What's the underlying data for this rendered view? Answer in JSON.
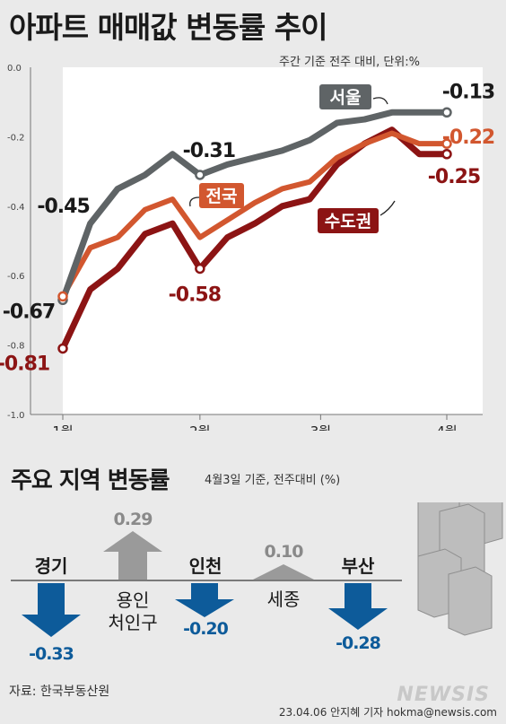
{
  "title": "아파트 매매값 변동률 추이",
  "unit_note": "주간 기준 전주 대비, 단위:%",
  "chart_data": {
    "type": "line",
    "title": "아파트 매매값 변동률 추이",
    "x": [
      0,
      1,
      2,
      3,
      4,
      5,
      6,
      7,
      8,
      9,
      10,
      11,
      12,
      13,
      14
    ],
    "x_ticks": [
      {
        "pos": 0,
        "label": "1월"
      },
      {
        "pos": 5,
        "label": "2월"
      },
      {
        "pos": 9.4,
        "label": "3월"
      },
      {
        "pos": 14,
        "label": "4월"
      }
    ],
    "ylim": [
      -1.0,
      0.0
    ],
    "y_ticks": [
      "0.0",
      "-0.2",
      "-0.4",
      "-0.6",
      "-0.8",
      "-1.0"
    ],
    "grid": false,
    "series": [
      {
        "name": "서울",
        "color": "#5f6466",
        "values": [
          -0.67,
          -0.45,
          -0.35,
          -0.31,
          -0.25,
          -0.31,
          -0.28,
          -0.26,
          -0.24,
          -0.21,
          -0.16,
          -0.15,
          -0.13,
          -0.13,
          -0.13
        ]
      },
      {
        "name": "전국",
        "color": "#d2572f",
        "values": [
          -0.66,
          -0.52,
          -0.49,
          -0.41,
          -0.38,
          -0.49,
          -0.44,
          -0.39,
          -0.35,
          -0.33,
          -0.26,
          -0.22,
          -0.19,
          -0.22,
          -0.22
        ]
      },
      {
        "name": "수도권",
        "color": "#8c1414",
        "values": [
          -0.81,
          -0.64,
          -0.58,
          -0.48,
          -0.45,
          -0.58,
          -0.49,
          -0.45,
          -0.4,
          -0.38,
          -0.28,
          -0.22,
          -0.18,
          -0.25,
          -0.25
        ]
      }
    ],
    "annotations": [
      {
        "text": "-0.45"
      },
      {
        "text": "-0.67"
      },
      {
        "text": "-0.81"
      },
      {
        "text": "-0.31"
      },
      {
        "text": "-0.58"
      },
      {
        "text": "-0.13"
      },
      {
        "text": "-0.22"
      },
      {
        "text": "-0.25"
      }
    ],
    "series_labels": [
      "서울",
      "전국",
      "수도권"
    ]
  },
  "regions": {
    "title": "주요 지역 변동률",
    "note": "4월3일 기준, 전주대비 (%)",
    "items": [
      {
        "name": "경기",
        "value": "-0.33",
        "dir": "down"
      },
      {
        "name": "용인 처인구",
        "name1": "용인",
        "name2": "처인구",
        "value": "0.29",
        "dir": "up"
      },
      {
        "name": "인천",
        "value": "-0.20",
        "dir": "down"
      },
      {
        "name": "세종",
        "value": "0.10",
        "dir": "up"
      },
      {
        "name": "부산",
        "value": "-0.28",
        "dir": "down"
      }
    ]
  },
  "source": "자료: 한국부동산원",
  "credit": "23.04.06 안지혜 기자 hokma@newsis.com",
  "watermark": "NEWSIS",
  "colors": {
    "seoul": "#5f6466",
    "national": "#d2572f",
    "capital": "#8c1414",
    "down_arrow": "#0d5b9a",
    "up_arrow": "#9a9a9a"
  }
}
